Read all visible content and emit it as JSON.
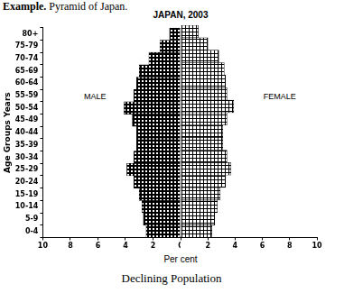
{
  "heading": {
    "label": "Example.",
    "text": "Pyramid of Japan."
  },
  "chart_data": {
    "type": "bar",
    "orientation": "horizontal",
    "title": "JAPAN, 2003",
    "x_label": "Per cent",
    "y_label": "Age Groups Years",
    "categories": [
      "0-4",
      "5-9",
      "10-14",
      "15-19",
      "20-24",
      "25-29",
      "30-34",
      "35-39",
      "40-44",
      "45-49",
      "50-54",
      "55-59",
      "60-64",
      "65-69",
      "70-74",
      "75-79",
      "80+"
    ],
    "series": [
      {
        "name": "MALE",
        "color": "#000000",
        "values": [
          2.5,
          2.7,
          2.8,
          3.0,
          3.4,
          3.9,
          3.4,
          3.2,
          3.2,
          3.5,
          4.1,
          3.4,
          3.2,
          3.0,
          2.3,
          1.5,
          0.8
        ]
      },
      {
        "name": "FEMALE",
        "color": "#000000",
        "values": [
          2.3,
          2.5,
          2.7,
          2.9,
          3.3,
          3.7,
          3.4,
          3.1,
          3.1,
          3.4,
          3.9,
          3.4,
          3.3,
          3.2,
          2.8,
          2.0,
          1.3
        ]
      }
    ],
    "xlim": [
      0,
      10
    ],
    "xticks": [
      0,
      2,
      4,
      6,
      8,
      10
    ],
    "grid": false
  },
  "caption": "Declining Population"
}
